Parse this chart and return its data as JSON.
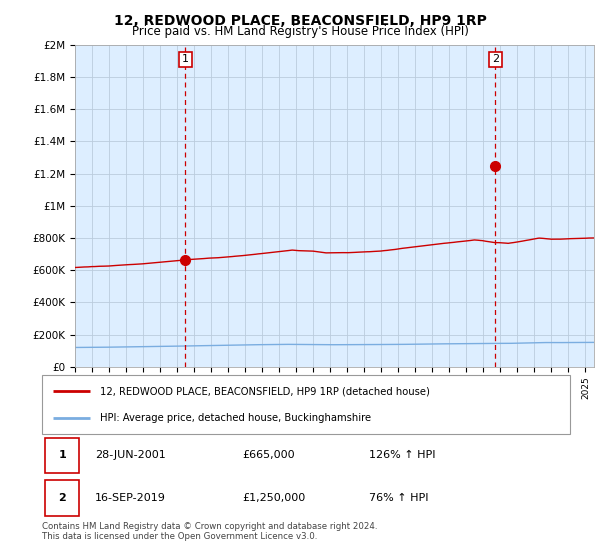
{
  "title": "12, REDWOOD PLACE, BEACONSFIELD, HP9 1RP",
  "subtitle": "Price paid vs. HM Land Registry's House Price Index (HPI)",
  "legend_line1": "12, REDWOOD PLACE, BEACONSFIELD, HP9 1RP (detached house)",
  "legend_line2": "HPI: Average price, detached house, Buckinghamshire",
  "sale1_label": "1",
  "sale1_date": "28-JUN-2001",
  "sale1_price": "£665,000",
  "sale1_hpi": "126% ↑ HPI",
  "sale2_label": "2",
  "sale2_date": "16-SEP-2019",
  "sale2_price": "£1,250,000",
  "sale2_hpi": "76% ↑ HPI",
  "copyright": "Contains HM Land Registry data © Crown copyright and database right 2024.\nThis data is licensed under the Open Government Licence v3.0.",
  "plot_color_red": "#cc0000",
  "plot_color_blue": "#7aade0",
  "dashed_color": "#cc0000",
  "plot_bg_color": "#ddeeff",
  "background_color": "#ffffff",
  "grid_color": "#bbccdd",
  "ylim": [
    0,
    2000000
  ],
  "yticks": [
    0,
    200000,
    400000,
    600000,
    800000,
    1000000,
    1200000,
    1400000,
    1600000,
    1800000,
    2000000
  ],
  "ytick_labels": [
    "£0",
    "£200K",
    "£400K",
    "£600K",
    "£800K",
    "£1M",
    "£1.2M",
    "£1.4M",
    "£1.6M",
    "£1.8M",
    "£2M"
  ],
  "sale1_year": 2001.49,
  "sale1_value": 665000,
  "sale2_year": 2019.71,
  "sale2_value": 1250000,
  "xmin": 1995.0,
  "xmax": 2025.5
}
